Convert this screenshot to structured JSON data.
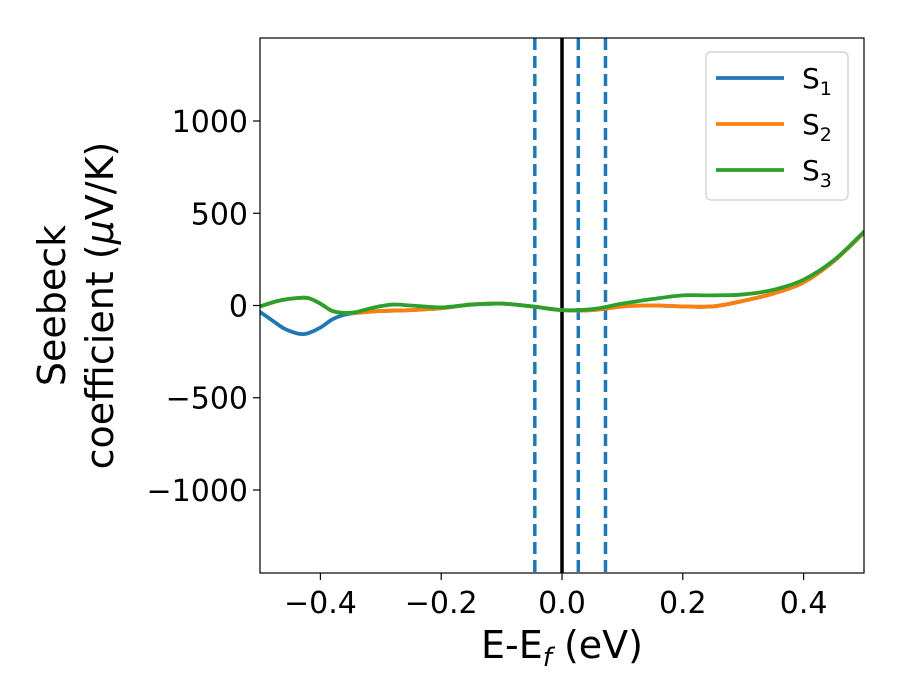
{
  "chart_data": {
    "type": "line",
    "xlabel": "E-E",
    "xlabel_sub": "f",
    "xlabel_unit": " (eV)",
    "ylabel_line1": "Seebeck",
    "ylabel_line2": "coefficient  (",
    "ylabel_mu": "μ",
    "ylabel_unit": "V/K)",
    "xlim": [
      -0.5,
      0.5
    ],
    "ylim": [
      -1450,
      1450
    ],
    "xticks": [
      -0.4,
      -0.2,
      0.0,
      0.2,
      0.4
    ],
    "xtick_labels": [
      "−0.4",
      "−0.2",
      "0.0",
      "0.2",
      "0.4"
    ],
    "yticks": [
      -1000,
      -500,
      0,
      500,
      1000
    ],
    "ytick_labels": [
      "−1000",
      "−500",
      "0",
      "500",
      "1000"
    ],
    "legend_position": "top-right",
    "series": [
      {
        "name": "S",
        "sub": "1",
        "color": "#1f77b4",
        "x": [
          -0.5,
          -0.48,
          -0.46,
          -0.44,
          -0.43,
          -0.42,
          -0.4,
          -0.38,
          -0.36,
          -0.34,
          -0.3,
          -0.25,
          -0.2,
          -0.15,
          -0.1,
          -0.05,
          0.0,
          0.05,
          0.1,
          0.15,
          0.2,
          0.25,
          0.3,
          0.35,
          0.4,
          0.45,
          0.5
        ],
        "y": [
          -35,
          -80,
          -125,
          -150,
          -155,
          -150,
          -120,
          -75,
          -50,
          -40,
          -30,
          -25,
          -15,
          5,
          10,
          -5,
          -25,
          -25,
          -5,
          0,
          -5,
          -5,
          25,
          65,
          125,
          240,
          395
        ]
      },
      {
        "name": "S",
        "sub": "2",
        "color": "#ff7f0e",
        "x": [
          -0.5,
          -0.47,
          -0.44,
          -0.42,
          -0.4,
          -0.38,
          -0.36,
          -0.34,
          -0.3,
          -0.25,
          -0.2,
          -0.15,
          -0.1,
          -0.05,
          0.0,
          0.05,
          0.1,
          0.15,
          0.2,
          0.25,
          0.3,
          0.35,
          0.4,
          0.45,
          0.5
        ],
        "y": [
          -5,
          25,
          40,
          40,
          10,
          -30,
          -40,
          -40,
          -30,
          -25,
          -15,
          5,
          10,
          -5,
          -25,
          -25,
          -5,
          0,
          -5,
          -5,
          25,
          65,
          125,
          240,
          395
        ]
      },
      {
        "name": "S",
        "sub": "3",
        "color": "#2ca02c",
        "x": [
          -0.5,
          -0.47,
          -0.44,
          -0.42,
          -0.4,
          -0.38,
          -0.36,
          -0.34,
          -0.31,
          -0.28,
          -0.25,
          -0.2,
          -0.15,
          -0.1,
          -0.05,
          0.0,
          0.05,
          0.1,
          0.15,
          0.2,
          0.25,
          0.3,
          0.35,
          0.4,
          0.45,
          0.5
        ],
        "y": [
          -5,
          25,
          40,
          40,
          10,
          -30,
          -40,
          -35,
          -10,
          5,
          0,
          -10,
          5,
          10,
          -5,
          -25,
          -20,
          10,
          35,
          55,
          55,
          60,
          85,
          140,
          245,
          400
        ]
      }
    ],
    "vlines": [
      {
        "x": 0.0,
        "style": "solid",
        "color": "#000000"
      },
      {
        "x": -0.045,
        "style": "dashed",
        "color": "#1f77b4"
      },
      {
        "x": 0.027,
        "style": "dashed",
        "color": "#1f77b4"
      },
      {
        "x": 0.072,
        "style": "dashed",
        "color": "#1f77b4"
      }
    ]
  }
}
